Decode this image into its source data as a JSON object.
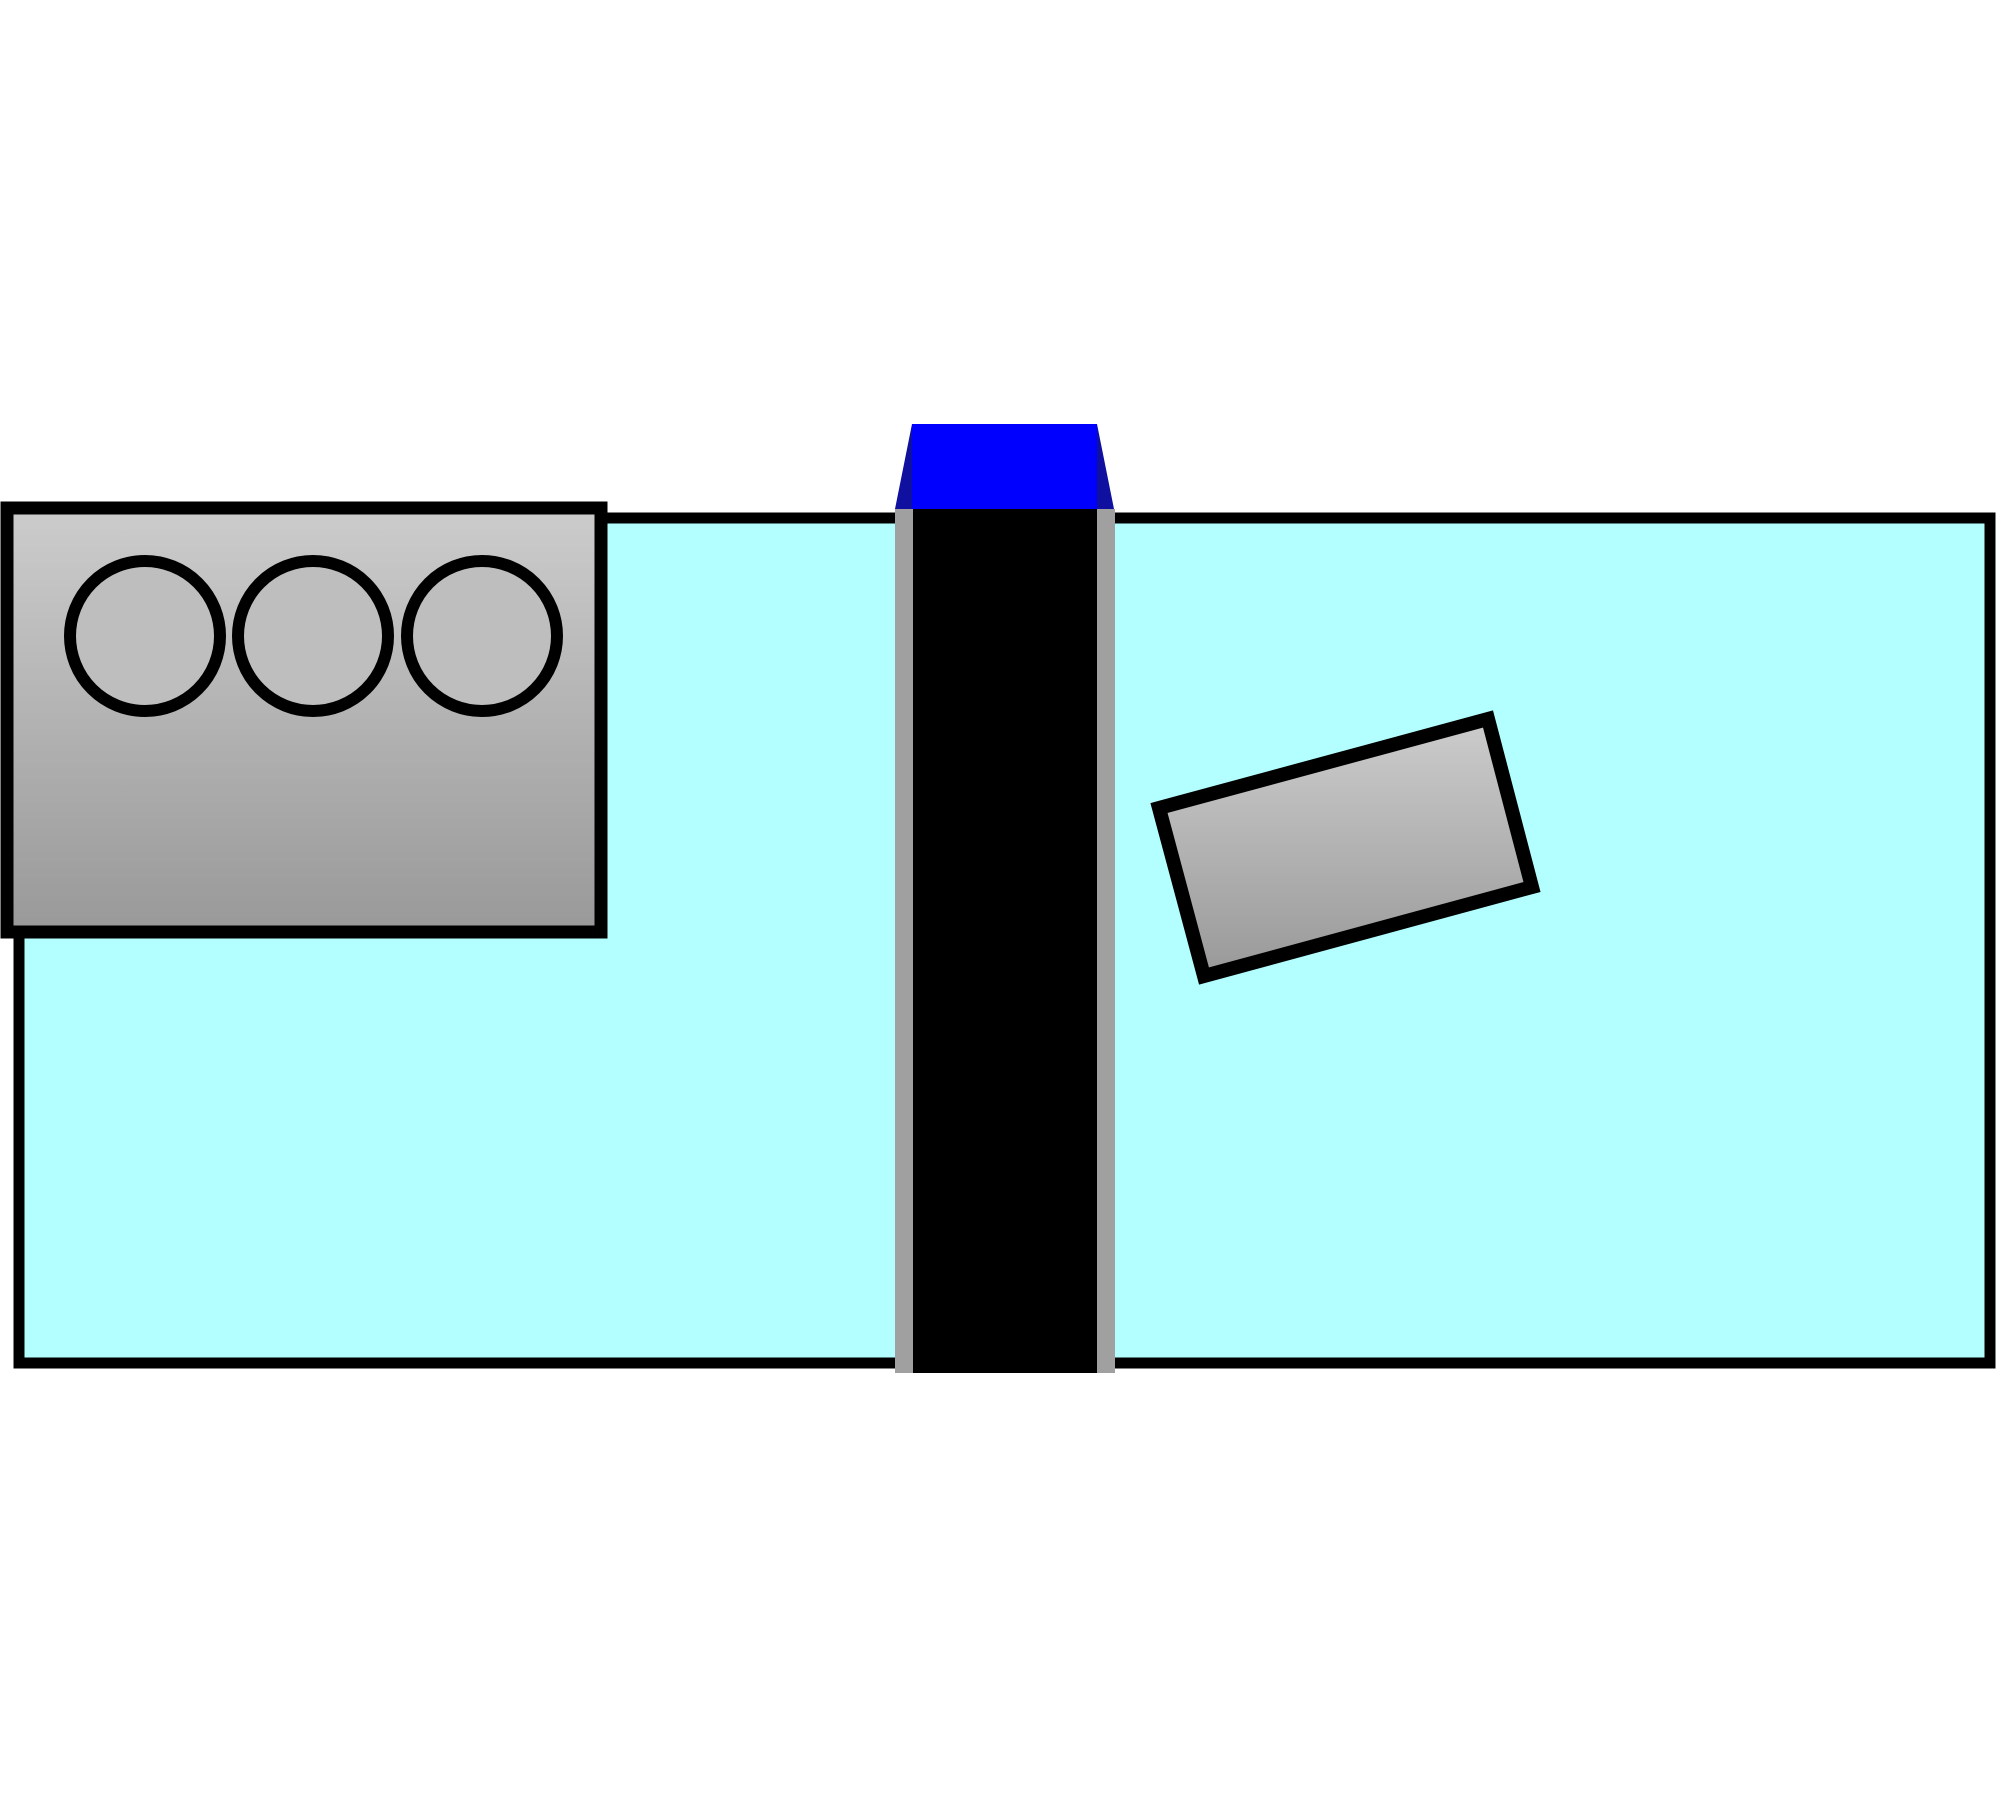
{
  "diagram": {
    "colors": {
      "background": "#ffffff",
      "tank_fill": "#b3ffff",
      "outline": "#000000",
      "barrier_fill": "#000000",
      "barrier_edge": "#a0a0a0",
      "cap_fill": "#0000ff",
      "cap_shade": "#1010a0",
      "box_gradient_top": "#cccccc",
      "box_gradient_bottom": "#999999",
      "circle_fill": "#bebebe"
    },
    "components": {
      "tank": {
        "icon": "tank-icon"
      },
      "divider": {
        "icon": "divider-wall-icon"
      },
      "cap": {
        "icon": "blue-cap-icon"
      },
      "unit": {
        "icon": "unit-box-icon",
        "circle_count": 3
      },
      "block": {
        "icon": "tilted-block-icon"
      }
    }
  }
}
